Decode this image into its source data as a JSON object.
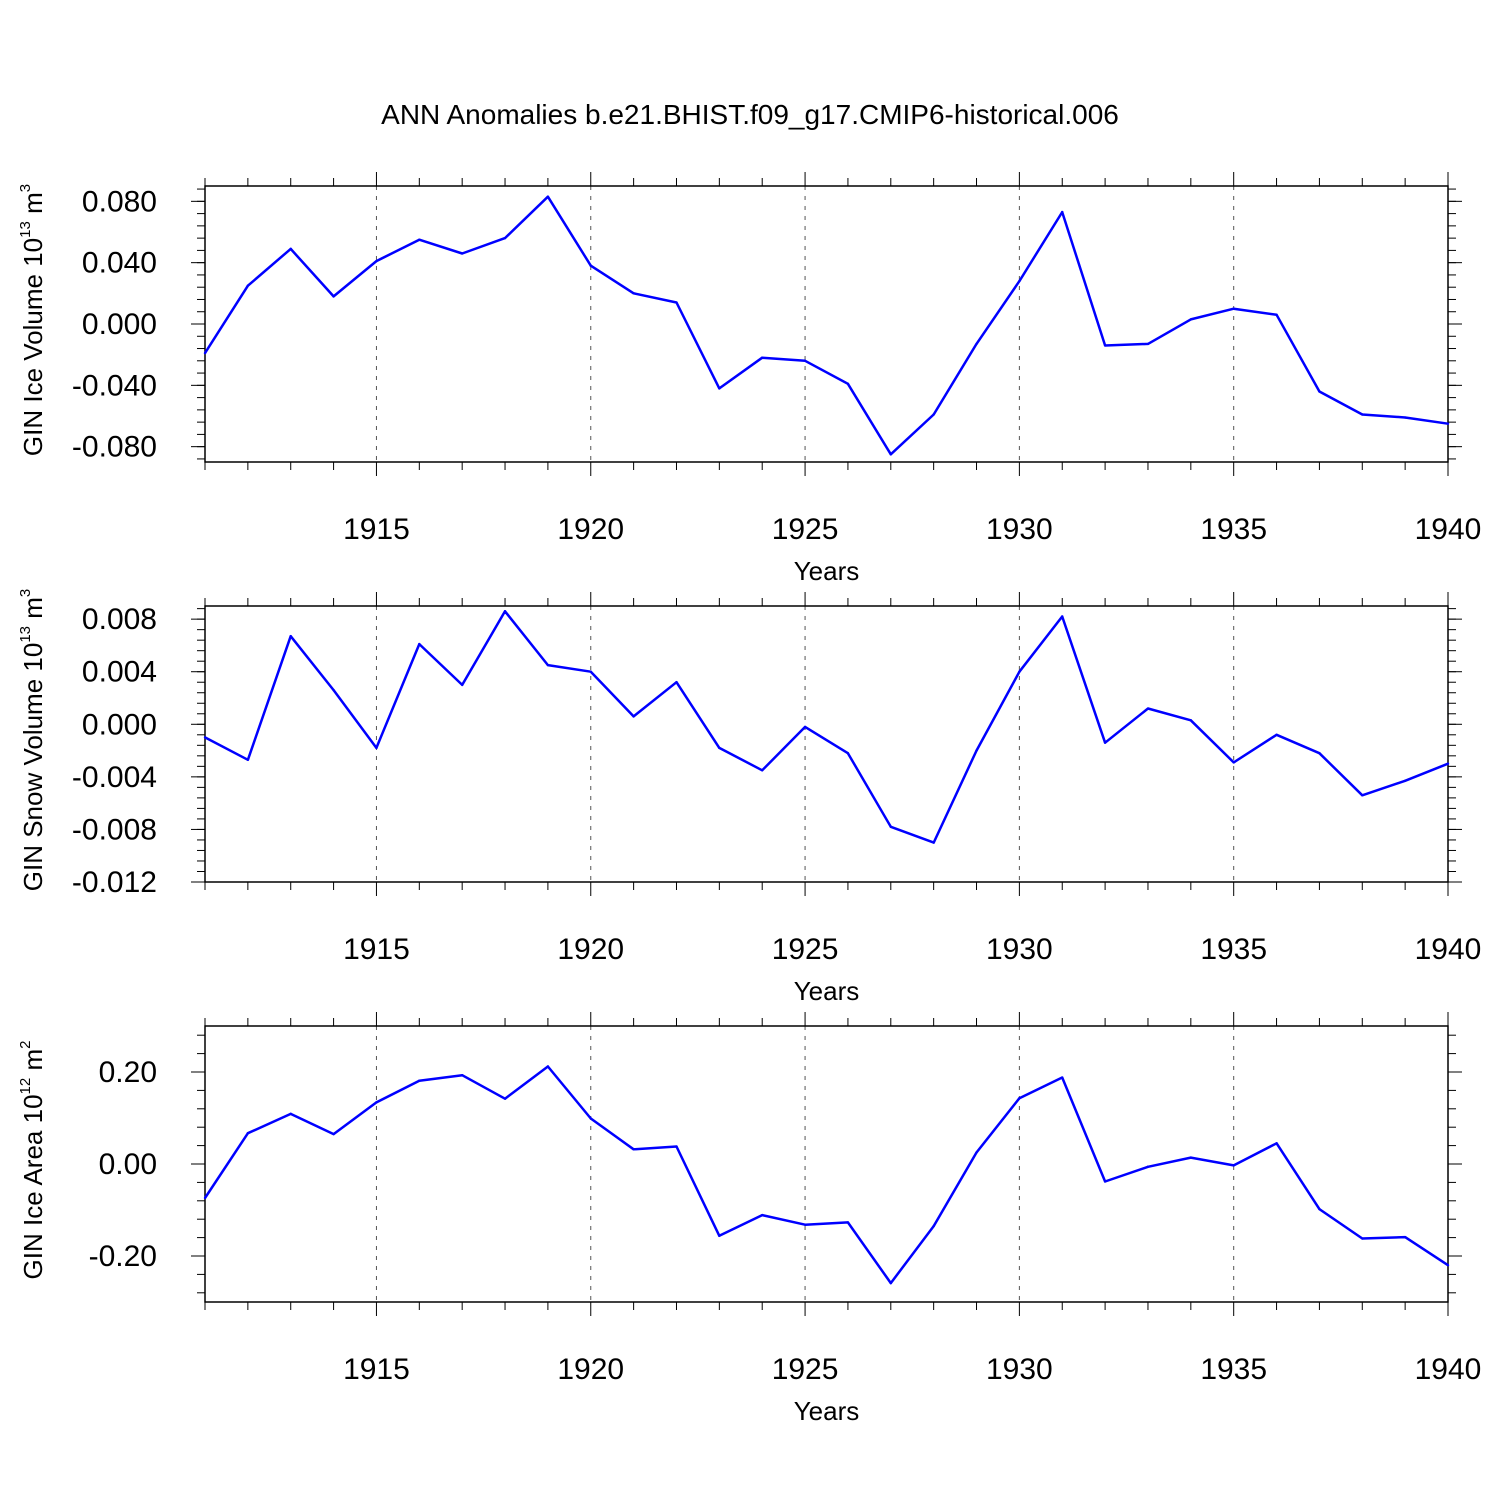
{
  "title": "ANN Anomalies b.e21.BHIST.f09_g17.CMIP6-historical.006",
  "colors": {
    "line": "#0000ff",
    "axis": "#000000",
    "grid": "#555555"
  },
  "chart_data": [
    {
      "type": "line",
      "ylabel": {
        "main": "GIN Ice Volume 10",
        "sup": "13",
        "unit": " m",
        "unit_sup": "3"
      },
      "xlabel": "Years",
      "xlim": [
        1911,
        1940
      ],
      "ylim": [
        -0.09,
        0.09
      ],
      "yticks": [
        -0.08,
        -0.04,
        0.0,
        0.04,
        0.08
      ],
      "ytick_labels": [
        "-0.080",
        "-0.040",
        "0.000",
        "0.040",
        "0.080"
      ],
      "xticks": [
        1915,
        1920,
        1925,
        1930,
        1935,
        1940
      ],
      "xtick_labels": [
        "1915",
        "1920",
        "1925",
        "1930",
        "1935",
        "1940"
      ],
      "x": [
        1911,
        1912,
        1913,
        1914,
        1915,
        1916,
        1917,
        1918,
        1919,
        1920,
        1921,
        1922,
        1923,
        1924,
        1925,
        1926,
        1927,
        1928,
        1929,
        1930,
        1931,
        1932,
        1933,
        1934,
        1935,
        1936,
        1937,
        1938,
        1939,
        1940
      ],
      "values": [
        -0.019,
        0.025,
        0.049,
        0.018,
        0.041,
        0.055,
        0.046,
        0.056,
        0.083,
        0.038,
        0.02,
        0.014,
        -0.042,
        -0.022,
        -0.024,
        -0.039,
        -0.085,
        -0.059,
        -0.013,
        0.028,
        0.073,
        -0.014,
        -0.013,
        0.003,
        0.01,
        0.006,
        -0.044,
        -0.059,
        -0.061,
        -0.065
      ]
    },
    {
      "type": "line",
      "ylabel": {
        "main": "GIN Snow Volume 10",
        "sup": "13",
        "unit": " m",
        "unit_sup": "3"
      },
      "xlabel": "Years",
      "xlim": [
        1911,
        1940
      ],
      "ylim": [
        -0.012,
        0.009
      ],
      "yticks": [
        -0.012,
        -0.008,
        -0.004,
        0.0,
        0.004,
        0.008
      ],
      "ytick_labels": [
        "-0.012",
        "-0.008",
        "-0.004",
        "0.000",
        "0.004",
        "0.008"
      ],
      "xticks": [
        1915,
        1920,
        1925,
        1930,
        1935,
        1940
      ],
      "xtick_labels": [
        "1915",
        "1920",
        "1925",
        "1930",
        "1935",
        "1940"
      ],
      "x": [
        1911,
        1912,
        1913,
        1914,
        1915,
        1916,
        1917,
        1918,
        1919,
        1920,
        1921,
        1922,
        1923,
        1924,
        1925,
        1926,
        1927,
        1928,
        1929,
        1930,
        1931,
        1932,
        1933,
        1934,
        1935,
        1936,
        1937,
        1938,
        1939,
        1940
      ],
      "values": [
        -0.001,
        -0.0027,
        0.0067,
        0.0026,
        -0.0018,
        0.0061,
        0.003,
        0.0086,
        0.0045,
        0.004,
        0.0006,
        0.0032,
        -0.0018,
        -0.0035,
        -0.0002,
        -0.0022,
        -0.0078,
        -0.009,
        -0.002,
        0.004,
        0.0082,
        -0.0014,
        0.0012,
        0.0003,
        -0.0029,
        -0.0008,
        -0.0022,
        -0.0054,
        -0.0043,
        -0.003
      ]
    },
    {
      "type": "line",
      "ylabel": {
        "main": "GIN Ice Area 10",
        "sup": "12",
        "unit": " m",
        "unit_sup": "2"
      },
      "xlabel": "Years",
      "xlim": [
        1911,
        1940
      ],
      "ylim": [
        -0.3,
        0.3
      ],
      "yticks": [
        -0.2,
        0.0,
        0.2
      ],
      "ytick_labels": [
        "-0.20",
        "0.00",
        "0.20"
      ],
      "xticks": [
        1915,
        1920,
        1925,
        1930,
        1935,
        1940
      ],
      "xtick_labels": [
        "1915",
        "1920",
        "1925",
        "1930",
        "1935",
        "1940"
      ],
      "x": [
        1911,
        1912,
        1913,
        1914,
        1915,
        1916,
        1917,
        1918,
        1919,
        1920,
        1921,
        1922,
        1923,
        1924,
        1925,
        1926,
        1927,
        1928,
        1929,
        1930,
        1931,
        1932,
        1933,
        1934,
        1935,
        1936,
        1937,
        1938,
        1939,
        1940
      ],
      "values": [
        -0.074,
        0.067,
        0.109,
        0.065,
        0.134,
        0.181,
        0.193,
        0.142,
        0.212,
        0.099,
        0.032,
        0.038,
        -0.156,
        -0.111,
        -0.132,
        -0.127,
        -0.259,
        -0.135,
        0.025,
        0.143,
        0.188,
        -0.038,
        -0.006,
        0.014,
        -0.003,
        0.045,
        -0.098,
        -0.162,
        -0.159,
        -0.22
      ]
    }
  ]
}
